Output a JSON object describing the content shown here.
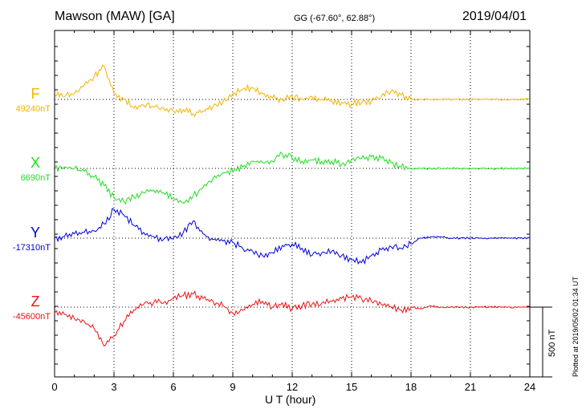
{
  "header": {
    "station": "Mawson (MAW)  [GA]",
    "coords": "GG (-67.60°,  62.88°)",
    "date": "2019/04/01"
  },
  "footer": {
    "xlabel": "U T (hour)",
    "plotted": "Plotted at 2019/05/02 01:34 UT",
    "scale_label": "500 nT"
  },
  "colors": {
    "F": "#f2b400",
    "X": "#22dd22",
    "Y": "#0000dd",
    "Z": "#ee1111"
  },
  "chart_data": {
    "type": "line",
    "title": "Mawson (MAW)  [GA]",
    "xlabel": "U T (hour)",
    "ylabel": "",
    "xlim": [
      0,
      24
    ],
    "xticks": [
      0,
      3,
      6,
      9,
      12,
      15,
      18,
      21,
      24
    ],
    "grid": true,
    "scale_bar_nT": 500,
    "x": [
      0,
      0.5,
      1,
      1.5,
      2,
      2.5,
      3,
      3.5,
      4,
      4.5,
      5,
      5.5,
      6,
      6.5,
      7,
      7.5,
      8,
      8.5,
      9,
      9.5,
      10,
      10.5,
      11,
      11.5,
      12,
      12.5,
      13,
      13.5,
      14,
      14.5,
      15,
      15.5,
      16,
      16.5,
      17,
      17.5,
      18,
      18.5,
      19,
      19.5,
      20,
      20.5,
      21,
      21.5,
      22,
      22.5,
      23,
      23.5,
      24
    ],
    "series": [
      {
        "name": "F",
        "baseline_label": "49240nT",
        "values": [
          30,
          20,
          40,
          100,
          160,
          230,
          40,
          0,
          -60,
          -40,
          -50,
          -60,
          -80,
          -70,
          -100,
          -80,
          -50,
          -20,
          40,
          70,
          80,
          40,
          10,
          0,
          20,
          0,
          20,
          0,
          -10,
          -20,
          -30,
          -20,
          -10,
          20,
          60,
          30,
          0,
          0,
          0,
          0,
          0,
          0,
          0,
          0,
          0,
          0,
          0,
          0,
          5
        ]
      },
      {
        "name": "X",
        "baseline_label": "6690nT",
        "values": [
          0,
          10,
          0,
          -20,
          -60,
          -120,
          -200,
          -230,
          -200,
          -170,
          -150,
          -170,
          -200,
          -240,
          -190,
          -130,
          -70,
          -30,
          -20,
          10,
          50,
          40,
          50,
          100,
          70,
          50,
          60,
          50,
          50,
          30,
          60,
          70,
          80,
          70,
          40,
          10,
          0,
          0,
          0,
          0,
          0,
          0,
          0,
          0,
          0,
          0,
          0,
          0,
          0
        ]
      },
      {
        "name": "Y",
        "baseline_label": "-17310nT",
        "values": [
          0,
          10,
          30,
          40,
          50,
          100,
          200,
          160,
          90,
          40,
          10,
          -10,
          0,
          40,
          120,
          30,
          -10,
          -20,
          -30,
          -70,
          -90,
          -120,
          -100,
          -50,
          -40,
          -70,
          -120,
          -100,
          -90,
          -120,
          -150,
          -170,
          -120,
          -80,
          -60,
          -70,
          -40,
          0,
          10,
          10,
          0,
          0,
          0,
          0,
          0,
          0,
          0,
          0,
          0
        ]
      },
      {
        "name": "Z",
        "baseline_label": "-45600nT",
        "values": [
          -40,
          -50,
          -80,
          -100,
          -150,
          -270,
          -200,
          -100,
          -20,
          20,
          30,
          30,
          60,
          80,
          90,
          60,
          40,
          10,
          -40,
          -20,
          20,
          40,
          0,
          30,
          -10,
          10,
          20,
          30,
          40,
          60,
          70,
          60,
          40,
          20,
          0,
          -20,
          0,
          -10,
          10,
          0,
          0,
          0,
          0,
          0,
          0,
          0,
          0,
          0,
          0
        ]
      }
    ]
  }
}
